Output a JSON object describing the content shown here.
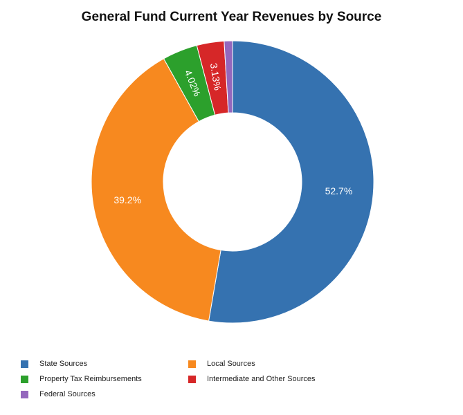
{
  "chart_data": {
    "type": "pie",
    "title": "General Fund Current Year Revenues by Source",
    "donut": true,
    "legend_position": "bottom-left",
    "slices": [
      {
        "name": "State Sources",
        "value": 52.7,
        "label": "52.7%",
        "color": "#3572b0"
      },
      {
        "name": "Local Sources",
        "value": 39.2,
        "label": "39.2%",
        "color": "#f7891f"
      },
      {
        "name": "Property Tax Reimbursements",
        "value": 4.02,
        "label": "4.02%",
        "color": "#2ca02c"
      },
      {
        "name": "Intermediate and Other Sources",
        "value": 3.13,
        "label": "3.13%",
        "color": "#d62728"
      },
      {
        "name": "Federal Sources",
        "value": 0.95,
        "label": "",
        "color": "#9467bd"
      }
    ],
    "legend": [
      "State Sources",
      "Local Sources",
      "Property Tax Reimbursements",
      "Intermediate and Other Sources",
      "Federal Sources"
    ]
  }
}
